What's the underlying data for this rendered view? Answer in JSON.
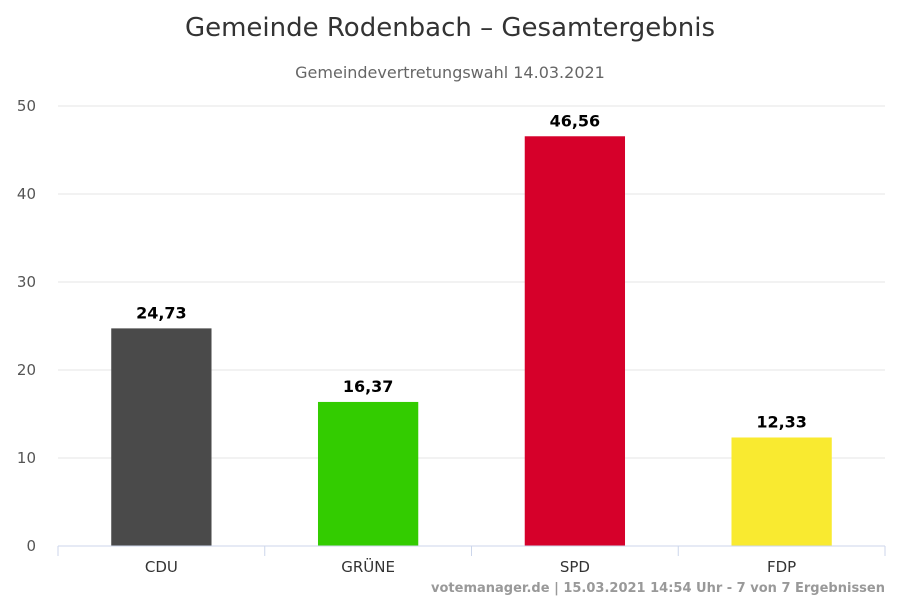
{
  "chart_data": {
    "type": "bar",
    "title": "Gemeinde Rodenbach – Gesamtergebnis",
    "subtitle": "Gemeindevertretungswahl 14.03.2021",
    "categories": [
      "CDU",
      "GRÜNE",
      "SPD",
      "FDP"
    ],
    "values": [
      24.73,
      16.37,
      46.56,
      12.33
    ],
    "value_labels": [
      "24,73",
      "16,37",
      "46,56",
      "12,33"
    ],
    "colors": [
      "#4a4a4a",
      "#33cc00",
      "#d6002a",
      "#f9ea30"
    ],
    "ylim": [
      0,
      50
    ],
    "yticks": [
      0,
      10,
      20,
      30,
      40,
      50
    ],
    "xlabel": "",
    "ylabel": "",
    "grid": true,
    "legend": "none"
  },
  "credits": "votemanager.de | 15.03.2021 14:54 Uhr - 7 von 7 Ergebnissen"
}
